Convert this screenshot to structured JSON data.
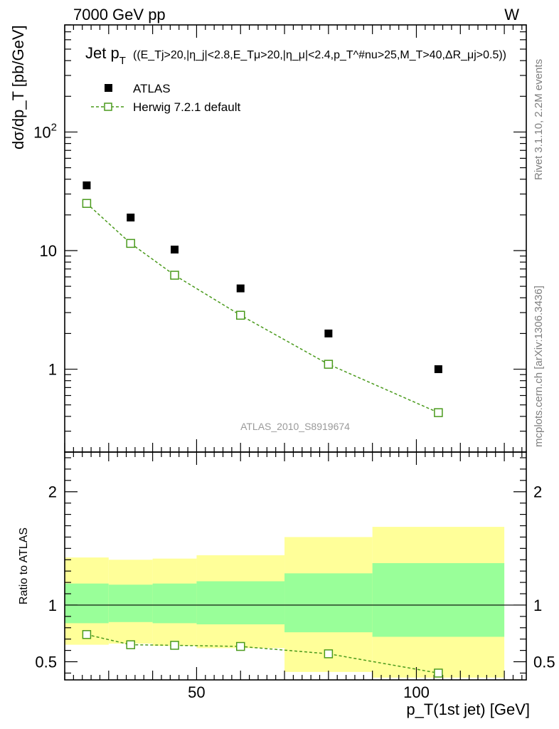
{
  "chart_data": [
    {
      "type": "scatter",
      "top_left_label": "7000 GeV pp",
      "top_right_label": "W",
      "title_text": "Jet p",
      "title_sub": "T",
      "title_cuts": "((E_Tj>20,|η_j|<2.8,E_Tμ>20,|η_μ|<2.4,p_T^#nu>25,M_T>40,ΔR_μj>0.5))",
      "ylabel": "dσ/dp_T [pb/GeV]",
      "yscale": "log",
      "ylim": [
        0.2,
        800
      ],
      "xlim": [
        20,
        125
      ],
      "y_tick_labels": [
        "1",
        "10",
        "10^2"
      ],
      "watermark": "ATLAS_2010_S8919674",
      "side_text_top": "Rivet 3.1.10,  2.2M events",
      "side_text_bottom": "mcplots.cern.ch [arXiv:1306.3436]",
      "legend_position": "top-left",
      "series": [
        {
          "name": "ATLAS",
          "marker": "filled-square",
          "color": "#000000",
          "x": [
            25,
            35,
            45,
            60,
            80,
            105
          ],
          "y": [
            35.5,
            19.0,
            10.2,
            4.8,
            2.0,
            1.0
          ]
        },
        {
          "name": "Herwig 7.2.1 default",
          "marker": "open-square-dashed-line",
          "color": "#4a9a1c",
          "x": [
            25,
            35,
            45,
            60,
            80,
            105
          ],
          "y": [
            25.0,
            11.5,
            6.2,
            2.85,
            1.1,
            0.43
          ]
        }
      ]
    },
    {
      "type": "line",
      "ylabel": "Ratio to ATLAS",
      "xlabel": "p_T(1st jet) [GeV]",
      "ylim": [
        0.34,
        2.35
      ],
      "xlim": [
        20,
        125
      ],
      "x_tick_labels": [
        "50",
        "100"
      ],
      "y_tick_labels": [
        "0.5",
        "1",
        "2"
      ],
      "reference_line": 1.0,
      "bands": {
        "bin_edges": [
          20,
          30,
          40,
          50,
          70,
          90,
          120
        ],
        "stat_low": [
          0.84,
          0.85,
          0.84,
          0.83,
          0.76,
          0.72
        ],
        "stat_high": [
          1.19,
          1.18,
          1.19,
          1.21,
          1.28,
          1.37
        ],
        "total_low": [
          0.65,
          0.66,
          0.64,
          0.62,
          0.41,
          0.36
        ],
        "total_high": [
          1.42,
          1.4,
          1.41,
          1.44,
          1.6,
          1.69
        ],
        "stat_color": "#99ff99",
        "total_color": "#ffff99"
      },
      "series": [
        {
          "name": "Herwig 7.2.1 default / ATLAS",
          "color": "#4a9a1c",
          "x": [
            25,
            35,
            45,
            60,
            80,
            105
          ],
          "y": [
            0.74,
            0.65,
            0.645,
            0.635,
            0.57,
            0.4
          ]
        }
      ]
    }
  ]
}
